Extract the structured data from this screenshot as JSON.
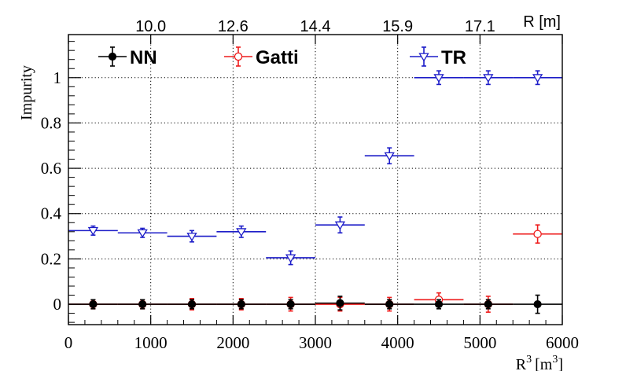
{
  "chart_data": {
    "type": "scatter",
    "xlabel": "R",
    "xlabel_sup": "3",
    "xlabel_unit_open": "[m",
    "xlabel_unit_sup": "3",
    "xlabel_unit_close": "]",
    "ylabel": "Impurity",
    "top_axis_label": "R [m]",
    "top_ticks": [
      "10.0",
      "12.6",
      "14.4",
      "15.9",
      "17.1"
    ],
    "top_tick_positions_x": [
      1000,
      2000,
      3000,
      4000,
      5000
    ],
    "xlim": [
      0,
      6000
    ],
    "ylim": [
      -0.09,
      1.19
    ],
    "xticks": [
      0,
      1000,
      2000,
      3000,
      4000,
      5000,
      6000
    ],
    "xtick_labels": [
      "0",
      "1000",
      "2000",
      "3000",
      "4000",
      "5000",
      "6000"
    ],
    "yticks": [
      0,
      0.2,
      0.4,
      0.6,
      0.8,
      1
    ],
    "ytick_labels": [
      "0",
      "0.2",
      "0.4",
      "0.6",
      "0.8",
      "1"
    ],
    "grid": true,
    "legend_placement": "top",
    "series": [
      {
        "name": "NN",
        "color": "#000000",
        "marker": "filled-circle",
        "points": [
          {
            "x": 300,
            "xerr": 300,
            "y": 0.0,
            "yerr": 0.02
          },
          {
            "x": 900,
            "xerr": 300,
            "y": 0.0,
            "yerr": 0.02
          },
          {
            "x": 1500,
            "xerr": 300,
            "y": 0.0,
            "yerr": 0.02
          },
          {
            "x": 2100,
            "xerr": 300,
            "y": 0.0,
            "yerr": 0.02
          },
          {
            "x": 2700,
            "xerr": 300,
            "y": 0.0,
            "yerr": 0.02
          },
          {
            "x": 3300,
            "xerr": 300,
            "y": 0.005,
            "yerr": 0.03
          },
          {
            "x": 3900,
            "xerr": 300,
            "y": 0.0,
            "yerr": 0.02
          },
          {
            "x": 4500,
            "xerr": 300,
            "y": 0.0,
            "yerr": 0.02
          },
          {
            "x": 5100,
            "xerr": 300,
            "y": 0.0,
            "yerr": 0.02
          },
          {
            "x": 5700,
            "xerr": 300,
            "y": 0.0,
            "yerr": 0.04
          }
        ]
      },
      {
        "name": "Gatti",
        "color": "#ee1c1c",
        "marker": "open-circle",
        "points": [
          {
            "x": 300,
            "xerr": 300,
            "y": 0.0,
            "yerr": 0.02
          },
          {
            "x": 900,
            "xerr": 300,
            "y": 0.0,
            "yerr": 0.02
          },
          {
            "x": 1500,
            "xerr": 300,
            "y": 0.0,
            "yerr": 0.025
          },
          {
            "x": 2100,
            "xerr": 300,
            "y": 0.0,
            "yerr": 0.025
          },
          {
            "x": 2700,
            "xerr": 300,
            "y": 0.0,
            "yerr": 0.03
          },
          {
            "x": 3300,
            "xerr": 300,
            "y": 0.0,
            "yerr": 0.03
          },
          {
            "x": 3900,
            "xerr": 300,
            "y": 0.0,
            "yerr": 0.03
          },
          {
            "x": 4500,
            "xerr": 300,
            "y": 0.02,
            "yerr": 0.03
          },
          {
            "x": 5100,
            "xerr": 300,
            "y": 0.0,
            "yerr": 0.035
          },
          {
            "x": 5700,
            "xerr": 300,
            "y": 0.31,
            "yerr": 0.04
          }
        ]
      },
      {
        "name": "TR",
        "color": "#1c1cc8",
        "marker": "open-triangle-down",
        "points": [
          {
            "x": 300,
            "xerr": 300,
            "y": 0.325,
            "yerr": 0.02
          },
          {
            "x": 900,
            "xerr": 300,
            "y": 0.315,
            "yerr": 0.02
          },
          {
            "x": 1500,
            "xerr": 300,
            "y": 0.3,
            "yerr": 0.025
          },
          {
            "x": 2100,
            "xerr": 300,
            "y": 0.32,
            "yerr": 0.025
          },
          {
            "x": 2700,
            "xerr": 300,
            "y": 0.205,
            "yerr": 0.03
          },
          {
            "x": 3300,
            "xerr": 300,
            "y": 0.35,
            "yerr": 0.035
          },
          {
            "x": 3900,
            "xerr": 300,
            "y": 0.655,
            "yerr": 0.035
          },
          {
            "x": 4500,
            "xerr": 300,
            "y": 1.0,
            "yerr": 0.03
          },
          {
            "x": 5100,
            "xerr": 300,
            "y": 1.0,
            "yerr": 0.03
          },
          {
            "x": 5700,
            "xerr": 300,
            "y": 1.0,
            "yerr": 0.03
          }
        ]
      }
    ]
  }
}
